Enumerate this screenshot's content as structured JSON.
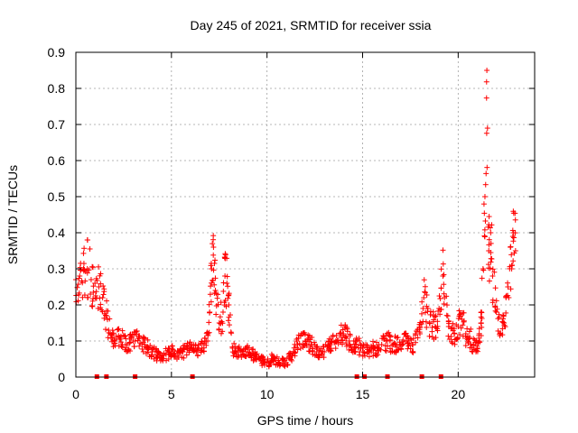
{
  "chart_data": {
    "type": "scatter",
    "title": "Day 245 of 2021, SRMTID for receiver ssia",
    "xlabel": "GPS time / hours",
    "ylabel": "SRMTID / TECUs",
    "xlim": [
      0,
      24
    ],
    "ylim": [
      0,
      0.9
    ],
    "xticks": [
      0,
      5,
      10,
      15,
      20
    ],
    "xtick_labels": [
      "0",
      "5",
      "10",
      "15",
      "20"
    ],
    "yticks": [
      0,
      0.1,
      0.2,
      0.3,
      0.4,
      0.5,
      0.6,
      0.7,
      0.8,
      0.9
    ],
    "ytick_labels": [
      "0",
      "0.1",
      "0.2",
      "0.3",
      "0.4",
      "0.5",
      "0.6",
      "0.7",
      "0.8",
      "0.9"
    ],
    "grid": true,
    "marker": "+",
    "color": "#ff0000",
    "series": [
      {
        "name": "SRMTID",
        "description": "approximate trend of dense scatter samples",
        "x": [
          0.0,
          0.2,
          0.4,
          0.6,
          0.8,
          1.0,
          1.2,
          1.4,
          1.6,
          1.8,
          2.0,
          2.3,
          2.6,
          3.0,
          3.3,
          3.6,
          4.0,
          4.3,
          4.6,
          5.0,
          5.3,
          5.6,
          6.0,
          6.3,
          6.6,
          6.9,
          7.0,
          7.1,
          7.2,
          7.3,
          7.5,
          7.7,
          7.8,
          7.9,
          8.0,
          8.2,
          8.5,
          8.8,
          9.0,
          9.3,
          9.6,
          10.0,
          10.3,
          10.6,
          11.0,
          11.3,
          11.6,
          12.0,
          12.3,
          12.6,
          13.0,
          13.3,
          13.6,
          14.0,
          14.3,
          14.6,
          15.0,
          15.3,
          15.6,
          16.0,
          16.3,
          16.6,
          17.0,
          17.3,
          17.6,
          18.0,
          18.2,
          18.5,
          18.8,
          19.0,
          19.2,
          19.5,
          19.8,
          20.0,
          20.2,
          20.4,
          20.6,
          20.8,
          21.0,
          21.1,
          21.2,
          21.3,
          21.4,
          21.5,
          21.6,
          21.7,
          21.8,
          22.0,
          22.2,
          22.4,
          22.6,
          22.8,
          22.9,
          23.0
        ],
        "y": [
          0.27,
          0.28,
          0.3,
          0.3,
          0.27,
          0.26,
          0.25,
          0.22,
          0.17,
          0.12,
          0.1,
          0.11,
          0.09,
          0.1,
          0.11,
          0.09,
          0.07,
          0.06,
          0.06,
          0.07,
          0.06,
          0.07,
          0.08,
          0.07,
          0.08,
          0.1,
          0.18,
          0.3,
          0.36,
          0.24,
          0.15,
          0.18,
          0.28,
          0.26,
          0.2,
          0.08,
          0.07,
          0.06,
          0.07,
          0.06,
          0.05,
          0.04,
          0.05,
          0.04,
          0.04,
          0.06,
          0.09,
          0.1,
          0.09,
          0.07,
          0.07,
          0.09,
          0.1,
          0.12,
          0.1,
          0.09,
          0.08,
          0.07,
          0.08,
          0.09,
          0.1,
          0.09,
          0.09,
          0.1,
          0.09,
          0.12,
          0.22,
          0.15,
          0.14,
          0.19,
          0.28,
          0.14,
          0.12,
          0.14,
          0.16,
          0.12,
          0.11,
          0.09,
          0.08,
          0.12,
          0.15,
          0.3,
          0.5,
          0.85,
          0.35,
          0.4,
          0.28,
          0.18,
          0.12,
          0.15,
          0.25,
          0.3,
          0.4,
          0.35
        ]
      }
    ],
    "zero_markers_x": [
      1.1,
      1.6,
      3.1,
      6.1,
      14.7,
      15.1,
      16.3,
      18.1,
      19.1
    ]
  }
}
